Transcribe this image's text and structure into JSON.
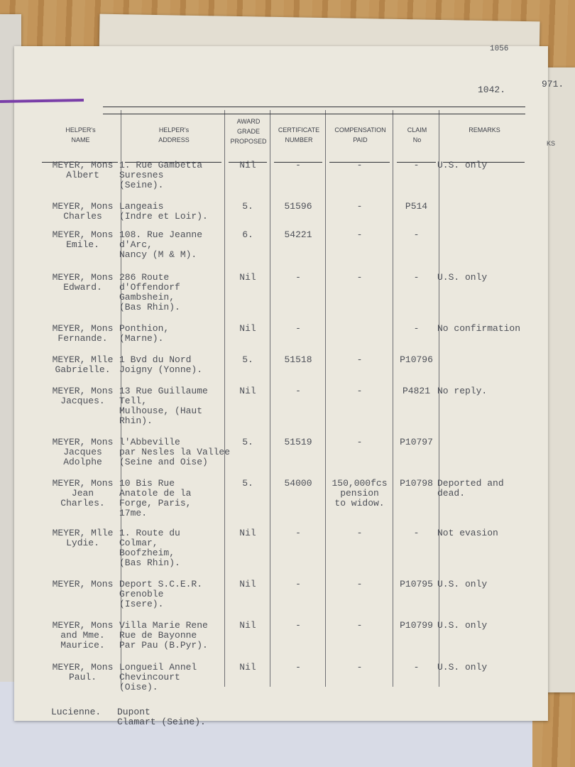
{
  "header": {
    "page_number": "1042."
  },
  "behind": {
    "tab_number": "1056",
    "page_number": "971.",
    "header": "KS"
  },
  "table": {
    "columns": [
      "HELPER's\nNAME",
      "HELPER's\nADDRESS",
      "AWARD\nGRADE\nPROPOSED",
      "CERTIFICATE\nNUMBER",
      "COMPENSATION\nPAID",
      "CLAIM\nNo",
      "REMARKS"
    ],
    "rows": [
      [
        "MEYER, Mons\nAlbert",
        "1. Rue Gambetta\nSuresnes\n(Seine).",
        "Nil",
        "-",
        "-",
        "-",
        "U.S. only"
      ],
      [
        "MEYER, Mons\nCharles",
        "Langeais\n(Indre et Loir).",
        "5.",
        "51596",
        "-",
        "P514",
        null
      ],
      [
        "MEYER, Mons\nEmile.",
        "108. Rue Jeanne\nd'Arc,\nNancy (M & M).",
        "6.",
        "54221",
        "-",
        "-",
        null
      ],
      [
        "MEYER, Mons\nEdward.",
        "286 Route\nd'Offendorf\nGambshein,\n(Bas Rhin).",
        "Nil",
        "-",
        "-",
        "-",
        "U.S. only"
      ],
      [
        "MEYER, Mons\nFernande.",
        "Ponthion,\n(Marne).",
        "Nil",
        "-",
        null,
        "-",
        "No confirmation"
      ],
      [
        "MEYER, Mlle\nGabrielle.",
        "1 Bvd du Nord\nJoigny (Yonne).",
        "5.",
        "51518",
        "-",
        "P10796",
        null
      ],
      [
        "MEYER, Mons\nJacques.",
        "13 Rue Guillaume\nTell,\nMulhouse, (Haut\nRhin).",
        "Nil",
        "-",
        "-",
        "P4821",
        "No reply."
      ],
      [
        "MEYER, Mons\nJacques\nAdolphe",
        "l'Abbeville\npar Nesles la Vallee\n(Seine and Oise)",
        "5.",
        "51519",
        "-",
        "P10797",
        null
      ],
      [
        "MEYER, Mons\nJean\nCharles.",
        "10 Bis Rue\nAnatole de la\nForge, Paris,\n17me.",
        "5.",
        "54000",
        "150,000fcs\npension\nto widow.",
        "P10798",
        "Deported and\ndead."
      ],
      [
        "MEYER, Mlle\nLydie.",
        "1. Route du\nColmar,\nBoofzheim,\n(Bas Rhin).",
        "Nil",
        "-",
        "-",
        "-",
        "Not evasion"
      ],
      [
        "MEYER, Mons",
        "Deport S.C.E.R.\nGrenoble\n(Isere).",
        "Nil",
        "-",
        "-",
        "P10795",
        "U.S. only"
      ],
      [
        "MEYER, Mons\nand Mme.\nMaurice.",
        "Villa Marie Rene\nRue de Bayonne\nPar Pau (B.Pyr).",
        "Nil",
        "-",
        "-",
        "P10799",
        "U.S. only"
      ],
      [
        "MEYER, Mons\nPaul.",
        "Longueil Annel\nChevincourt\n(Oise).",
        "Nil",
        "-",
        "-",
        "-",
        "U.S. only"
      ]
    ]
  },
  "footer": {
    "name": "Lucienne.",
    "address": "Dupont\nClamart (Seine)."
  }
}
